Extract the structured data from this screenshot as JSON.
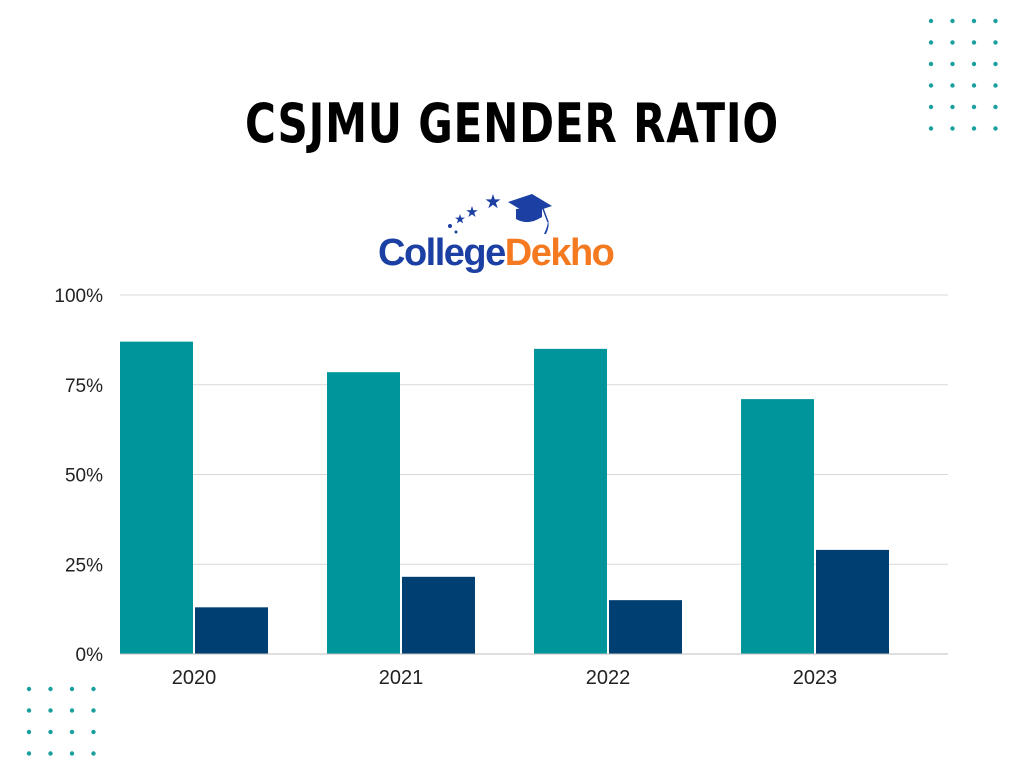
{
  "title": "CSJMU GENDER RATIO",
  "logo": {
    "part1": "College",
    "part2": "Dekho",
    "part1_color": "#1b3fa3",
    "part2_color": "#f47920",
    "icons": [
      "star-icon",
      "graduation-cap-icon"
    ]
  },
  "colors": {
    "series_1": "#00959b",
    "series_2": "#003f72",
    "dots": "#1a9f9f",
    "grid": "#d9d9d9"
  },
  "chart_data": {
    "type": "bar",
    "title": "CSJMU GENDER RATIO",
    "categories": [
      "2020",
      "2021",
      "2022",
      "2023"
    ],
    "series": [
      {
        "values": [
          87,
          78.5,
          85,
          71
        ]
      },
      {
        "values": [
          13,
          21.5,
          15,
          29
        ]
      }
    ],
    "yticks": [
      "0%",
      "25%",
      "50%",
      "75%",
      "100%"
    ],
    "ylim": [
      0,
      100
    ],
    "grid": true,
    "legend": "none"
  }
}
